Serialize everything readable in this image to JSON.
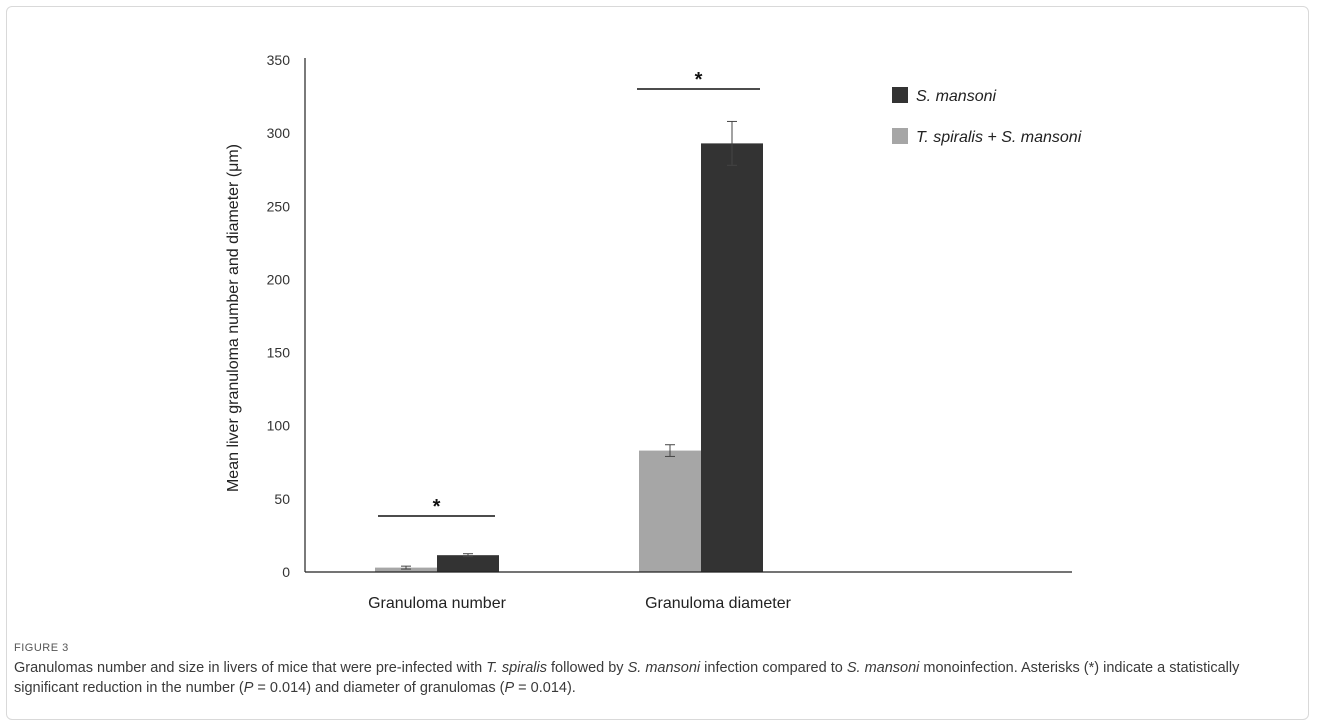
{
  "chart_data": {
    "type": "bar",
    "title": "",
    "xlabel": "",
    "ylabel": "Mean liver granuloma number and diameter (μm)",
    "ylim": [
      0,
      350
    ],
    "yticks": [
      0,
      50,
      100,
      150,
      200,
      250,
      300,
      350
    ],
    "categories": [
      "Granuloma number",
      "Granuloma diameter"
    ],
    "series": [
      {
        "name": "T. spiralis + S. mansoni",
        "color": "#a6a6a6",
        "values": [
          3,
          83
        ],
        "errors": [
          1,
          4
        ]
      },
      {
        "name": "S. mansoni",
        "color": "#333333",
        "values": [
          11.5,
          293
        ],
        "errors": [
          1,
          15
        ]
      }
    ],
    "legend": {
      "position": "top-right",
      "order": [
        "S. mansoni",
        "T. spiralis + S. mansoni"
      ]
    },
    "significance": [
      {
        "category": "Granuloma number",
        "label": "*"
      },
      {
        "category": "Granuloma diameter",
        "label": "*"
      }
    ]
  },
  "caption": {
    "label": "FIGURE 3",
    "parts": [
      {
        "t": "Granulomas number and size in livers of mice that were pre-infected with "
      },
      {
        "t": "T. spiralis",
        "i": true
      },
      {
        "t": " followed by "
      },
      {
        "t": "S. mansoni",
        "i": true
      },
      {
        "t": " infection compared to "
      },
      {
        "t": "S. mansoni",
        "i": true
      },
      {
        "t": " monoinfection. Asterisks (*) indicate a statistically significant reduction in the number ("
      },
      {
        "t": "P",
        "i": true
      },
      {
        "t": " = 0.014) and diameter of granulomas ("
      },
      {
        "t": "P",
        "i": true
      },
      {
        "t": " = 0.014)."
      }
    ]
  }
}
